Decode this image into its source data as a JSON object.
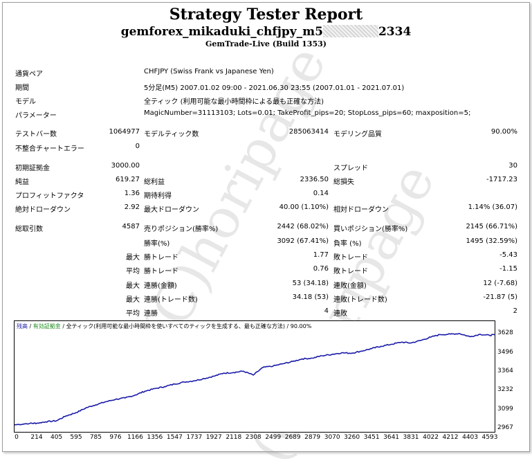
{
  "report": {
    "title": "Strategy Tester Report",
    "ea_prefix": "gemforex_mikaduki_chfjpy_m5",
    "ea_suffix": "2334",
    "server": "GemTrade-Live (Build 1353)"
  },
  "info": [
    {
      "label": "通貨ペア",
      "value": "CHFJPY (Swiss Frank vs Japanese Yen)"
    },
    {
      "label": "期間",
      "value": "5分足(M5) 2007.01.02 09:00 - 2021.06.30 23:55 (2007.01.01 - 2021.07.01)"
    },
    {
      "label": "モデル",
      "value": "全ティック (利用可能な最小時間枠による最も正確な方法)"
    },
    {
      "label": "パラメーター",
      "value": "MagicNumber=31113103; Lots=0.01; TakeProfit_pips=20; StopLoss_pips=60; maxposition=5;"
    }
  ],
  "stats": {
    "bars_label": "テストバー数",
    "bars": "1064977",
    "ticks_label": "モデルティック数",
    "ticks": "285063414",
    "quality_label": "モデリング品質",
    "quality": "90.00%",
    "mismatch_label": "不整合チャートエラー",
    "mismatch": "0",
    "deposit_label": "初期証拠金",
    "deposit": "3000.00",
    "spread_label": "スプレッド",
    "spread": "30",
    "net_label": "純益",
    "net": "619.27",
    "gross_profit_label": "総利益",
    "gross_profit": "2336.50",
    "gross_loss_label": "総損失",
    "gross_loss": "-1717.23",
    "pf_label": "プロフィットファクタ",
    "pf": "1.36",
    "expected_label": "期待利得",
    "expected": "0.14",
    "abs_dd_label": "絶対ドローダウン",
    "abs_dd": "2.92",
    "max_dd_label": "最大ドローダウン",
    "max_dd": "40.00 (1.10%)",
    "rel_dd_label": "相対ドローダウン",
    "rel_dd": "1.14% (36.07)",
    "total_label": "総取引数",
    "total": "4587",
    "short_label": "売りポジション(勝率%)",
    "short": "2442 (68.02%)",
    "long_label": "買いポジション(勝率%)",
    "long": "2145 (66.71%)",
    "win_label": "勝率(%)",
    "win": "3092 (67.41%)",
    "loss_label": "負率 (%)",
    "loss": "1495 (32.59%)",
    "max_prefix": "最大",
    "avg_prefix": "平均",
    "lwin_label": "勝トレード",
    "lwin": "1.77",
    "lloss_label": "敗トレード",
    "lloss": "-5.43",
    "awin_label": "勝トレード",
    "awin": "0.76",
    "aloss_label": "敗トレード",
    "aloss": "-1.15",
    "cw_money_label": "連勝(金額)",
    "cw_money": "53 (34.18)",
    "cl_money_label": "連敗(金額)",
    "cl_money": "12 (-7.68)",
    "cw_profit_label": "連勝(トレード数)",
    "cw_profit": "34.18 (53)",
    "cl_profit_label": "連敗(トレード数)",
    "cl_profit": "-21.87 (5)",
    "acw_label": "連勝",
    "acw": "4",
    "acl_label": "連敗",
    "acl": "2"
  },
  "chart_data": {
    "type": "line",
    "legend": [
      "残高",
      "/",
      "有効証拠金",
      "/",
      "全ティック(利用可能な最小時間枠を使いすべてのティックを生成する、最も正確な方法)",
      "/",
      "90.00%"
    ],
    "x_ticks": [
      0,
      214,
      405,
      595,
      785,
      976,
      1166,
      1356,
      1547,
      1737,
      1927,
      2118,
      2308,
      2499,
      2689,
      2879,
      3070,
      3260,
      3451,
      3641,
      3831,
      4022,
      4212,
      4403,
      4593
    ],
    "y_ticks": [
      3628,
      3496,
      3364,
      3232,
      3099,
      2967
    ],
    "xlim": [
      0,
      4640
    ],
    "ylim": [
      2967,
      3664
    ],
    "line_color": "#1a1aa8",
    "x": [
      0,
      150,
      214,
      300,
      405,
      500,
      595,
      700,
      785,
      880,
      976,
      1070,
      1166,
      1260,
      1356,
      1450,
      1547,
      1640,
      1737,
      1830,
      1927,
      2020,
      2118,
      2210,
      2308,
      2400,
      2499,
      2600,
      2689,
      2780,
      2879,
      2970,
      3070,
      3160,
      3260,
      3350,
      3451,
      3540,
      3641,
      3740,
      3831,
      3930,
      4022,
      4110,
      4212,
      4300,
      4403,
      4500,
      4593,
      4640
    ],
    "y": [
      2997,
      3007,
      3008,
      3018,
      3025,
      3060,
      3082,
      3118,
      3137,
      3158,
      3175,
      3185,
      3205,
      3232,
      3250,
      3264,
      3282,
      3296,
      3305,
      3320,
      3337,
      3358,
      3363,
      3372,
      3345,
      3398,
      3408,
      3425,
      3440,
      3458,
      3463,
      3480,
      3490,
      3500,
      3498,
      3512,
      3530,
      3546,
      3560,
      3575,
      3569,
      3588,
      3610,
      3628,
      3631,
      3635,
      3613,
      3630,
      3622,
      3628
    ]
  }
}
